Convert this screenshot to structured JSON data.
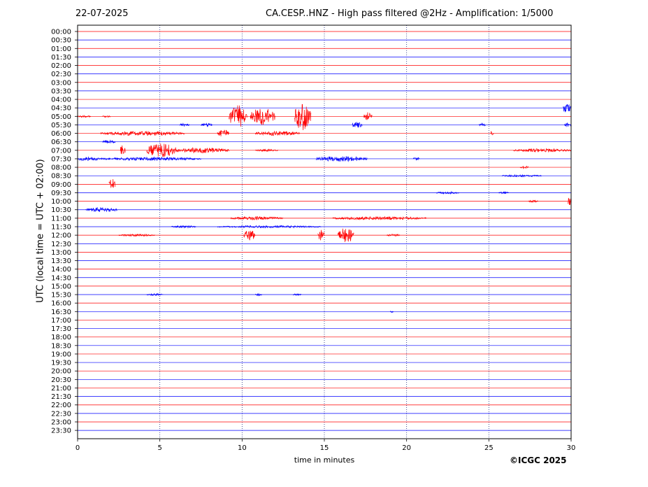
{
  "header": {
    "date": "22-07-2025",
    "title": "CA.CESP..HNZ - High pass filtered @2Hz - Amplification: 1/5000"
  },
  "footer": {
    "copyright": "©ICGC 2025"
  },
  "chart_data": {
    "type": "seismogram_helicorder",
    "xlabel": "time in minutes",
    "ylabel": "UTC (local time = UTC + 02:00)",
    "xlim": [
      0,
      30
    ],
    "x_ticks": [
      "0",
      "5",
      "10",
      "15",
      "20",
      "25",
      "30"
    ],
    "grid": "vertical dotted lines at 5, 10, 15, 20, 25",
    "trace_colors": [
      "#ff0000",
      "#0000ff"
    ],
    "rows": [
      "00:00",
      "00:30",
      "01:00",
      "01:30",
      "02:00",
      "02:30",
      "03:00",
      "03:30",
      "04:00",
      "04:30",
      "05:00",
      "05:30",
      "06:00",
      "06:30",
      "07:00",
      "07:30",
      "08:00",
      "08:30",
      "09:00",
      "09:30",
      "10:00",
      "10:30",
      "11:00",
      "11:30",
      "12:00",
      "12:30",
      "13:00",
      "13:30",
      "14:00",
      "14:30",
      "15:00",
      "15:30",
      "16:00",
      "16:30",
      "17:00",
      "17:30",
      "18:00",
      "18:30",
      "19:00",
      "19:30",
      "20:00",
      "20:30",
      "21:00",
      "21:30",
      "22:00",
      "22:30",
      "23:00",
      "23:30"
    ],
    "bursts": [
      {
        "row": "04:30",
        "start_min": 29.5,
        "end_min": 30,
        "amp": 10
      },
      {
        "row": "05:00",
        "start_min": 0,
        "end_min": 0.8,
        "amp": 2
      },
      {
        "row": "05:00",
        "start_min": 1.5,
        "end_min": 2.0,
        "amp": 2
      },
      {
        "row": "05:00",
        "start_min": 9.2,
        "end_min": 10.3,
        "amp": 20
      },
      {
        "row": "05:00",
        "start_min": 10.5,
        "end_min": 12.0,
        "amp": 16
      },
      {
        "row": "05:00",
        "start_min": 13.2,
        "end_min": 14.2,
        "amp": 26
      },
      {
        "row": "05:00",
        "start_min": 17.4,
        "end_min": 17.9,
        "amp": 8
      },
      {
        "row": "05:30",
        "start_min": 6.2,
        "end_min": 6.8,
        "amp": 3
      },
      {
        "row": "05:30",
        "start_min": 7.5,
        "end_min": 8.2,
        "amp": 3
      },
      {
        "row": "05:30",
        "start_min": 16.7,
        "end_min": 17.3,
        "amp": 6
      },
      {
        "row": "05:30",
        "start_min": 24.4,
        "end_min": 24.8,
        "amp": 3
      },
      {
        "row": "05:30",
        "start_min": 29.6,
        "end_min": 30,
        "amp": 4
      },
      {
        "row": "06:00",
        "start_min": 1.4,
        "end_min": 6.5,
        "amp": 4
      },
      {
        "row": "06:00",
        "start_min": 8.5,
        "end_min": 9.2,
        "amp": 7
      },
      {
        "row": "06:00",
        "start_min": 10.8,
        "end_min": 13.5,
        "amp": 4
      },
      {
        "row": "06:00",
        "start_min": 25.1,
        "end_min": 25.3,
        "amp": 5
      },
      {
        "row": "06:30",
        "start_min": 1.5,
        "end_min": 2.3,
        "amp": 3
      },
      {
        "row": "07:00",
        "start_min": 2.6,
        "end_min": 2.9,
        "amp": 12
      },
      {
        "row": "07:00",
        "start_min": 4.2,
        "end_min": 6.0,
        "amp": 13
      },
      {
        "row": "07:00",
        "start_min": 6.0,
        "end_min": 9.2,
        "amp": 5
      },
      {
        "row": "07:00",
        "start_min": 10.8,
        "end_min": 12.2,
        "amp": 2
      },
      {
        "row": "07:00",
        "start_min": 26.5,
        "end_min": 30,
        "amp": 3
      },
      {
        "row": "07:30",
        "start_min": 0,
        "end_min": 1.3,
        "amp": 4
      },
      {
        "row": "07:30",
        "start_min": 1.3,
        "end_min": 7.5,
        "amp": 3
      },
      {
        "row": "07:30",
        "start_min": 14.5,
        "end_min": 17.6,
        "amp": 5
      },
      {
        "row": "07:30",
        "start_min": 20.4,
        "end_min": 20.8,
        "amp": 3
      },
      {
        "row": "08:00",
        "start_min": 26.9,
        "end_min": 27.4,
        "amp": 3
      },
      {
        "row": "08:30",
        "start_min": 25.8,
        "end_min": 28.2,
        "amp": 2
      },
      {
        "row": "09:00",
        "start_min": 1.9,
        "end_min": 2.3,
        "amp": 10
      },
      {
        "row": "09:30",
        "start_min": 21.8,
        "end_min": 23.2,
        "amp": 2
      },
      {
        "row": "09:30",
        "start_min": 25.6,
        "end_min": 26.2,
        "amp": 2
      },
      {
        "row": "10:00",
        "start_min": 27.4,
        "end_min": 28.0,
        "amp": 2
      },
      {
        "row": "10:00",
        "start_min": 29.8,
        "end_min": 30,
        "amp": 9
      },
      {
        "row": "10:30",
        "start_min": 0.5,
        "end_min": 2.4,
        "amp": 4
      },
      {
        "row": "11:00",
        "start_min": 9.3,
        "end_min": 12.5,
        "amp": 3
      },
      {
        "row": "11:00",
        "start_min": 15.5,
        "end_min": 21.2,
        "amp": 3
      },
      {
        "row": "11:30",
        "start_min": 5.7,
        "end_min": 7.2,
        "amp": 2
      },
      {
        "row": "11:30",
        "start_min": 8.5,
        "end_min": 14.8,
        "amp": 2
      },
      {
        "row": "12:00",
        "start_min": 2.5,
        "end_min": 4.7,
        "amp": 2
      },
      {
        "row": "12:00",
        "start_min": 10.1,
        "end_min": 10.8,
        "amp": 10
      },
      {
        "row": "12:00",
        "start_min": 14.6,
        "end_min": 15.0,
        "amp": 10
      },
      {
        "row": "12:00",
        "start_min": 15.8,
        "end_min": 16.8,
        "amp": 14
      },
      {
        "row": "12:00",
        "start_min": 18.8,
        "end_min": 19.6,
        "amp": 2
      },
      {
        "row": "15:30",
        "start_min": 4.2,
        "end_min": 5.2,
        "amp": 2
      },
      {
        "row": "15:30",
        "start_min": 10.8,
        "end_min": 11.2,
        "amp": 2
      },
      {
        "row": "15:30",
        "start_min": 13.1,
        "end_min": 13.6,
        "amp": 2
      },
      {
        "row": "16:30",
        "start_min": 19.0,
        "end_min": 19.2,
        "amp": 2
      }
    ]
  }
}
